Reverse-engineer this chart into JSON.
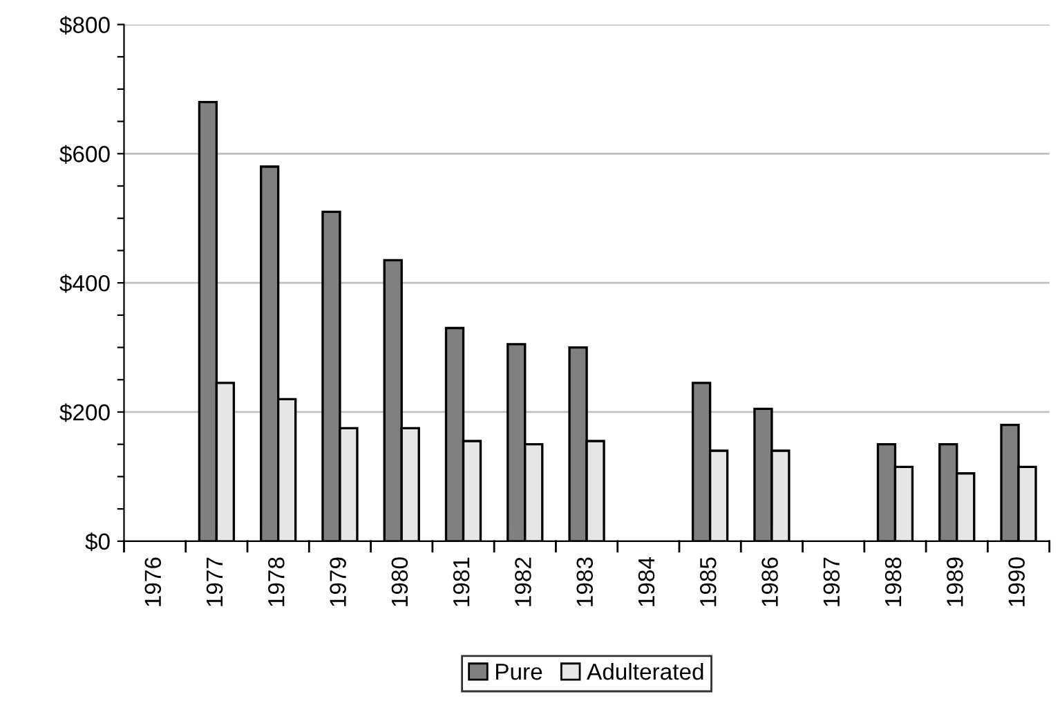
{
  "chart_data": {
    "type": "bar",
    "categories": [
      "1976",
      "1977",
      "1978",
      "1979",
      "1980",
      "1981",
      "1982",
      "1983",
      "1984",
      "1985",
      "1986",
      "1987",
      "1988",
      "1989",
      "1990"
    ],
    "series": [
      {
        "name": "Pure",
        "color": "#808080",
        "values": [
          null,
          680,
          580,
          510,
          435,
          330,
          305,
          300,
          null,
          245,
          205,
          null,
          150,
          150,
          180
        ]
      },
      {
        "name": "Adulterated",
        "color": "#e6e6e6",
        "values": [
          null,
          245,
          220,
          175,
          175,
          155,
          150,
          155,
          null,
          140,
          140,
          null,
          115,
          105,
          115
        ]
      }
    ],
    "ylim": [
      0,
      800
    ],
    "yticks": [
      {
        "value": 0,
        "label": "$0"
      },
      {
        "value": 50,
        "label": null
      },
      {
        "value": 100,
        "label": null
      },
      {
        "value": 150,
        "label": null
      },
      {
        "value": 200,
        "label": "$200"
      },
      {
        "value": 250,
        "label": null
      },
      {
        "value": 300,
        "label": null
      },
      {
        "value": 350,
        "label": null
      },
      {
        "value": 400,
        "label": "$400"
      },
      {
        "value": 450,
        "label": null
      },
      {
        "value": 500,
        "label": null
      },
      {
        "value": 550,
        "label": null
      },
      {
        "value": 600,
        "label": "$600"
      },
      {
        "value": 650,
        "label": null
      },
      {
        "value": 700,
        "label": null
      },
      {
        "value": 750,
        "label": null
      },
      {
        "value": 800,
        "label": "$800"
      }
    ],
    "grid": "y",
    "legend": "bottom"
  }
}
